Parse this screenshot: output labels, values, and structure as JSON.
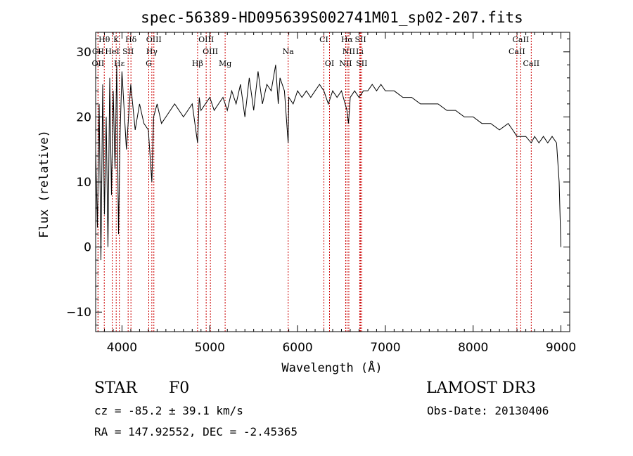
{
  "chart_data": {
    "type": "line",
    "title": "spec-56389-HD095639S002741M01_sp02-207.fits",
    "xlabel": "Wavelength (Å)",
    "ylabel": "Flux (relative)",
    "xlim": [
      3700,
      9100
    ],
    "ylim": [
      -13,
      33
    ],
    "xticks": [
      4000,
      5000,
      6000,
      7000,
      8000,
      9000
    ],
    "yticks": [
      -10,
      0,
      10,
      20,
      30
    ],
    "grid": false,
    "series": [
      {
        "name": "spectrum",
        "x": [
          3700,
          3720,
          3740,
          3760,
          3780,
          3800,
          3820,
          3840,
          3860,
          3880,
          3900,
          3920,
          3940,
          3960,
          3980,
          4000,
          4050,
          4100,
          4150,
          4200,
          4250,
          4300,
          4340,
          4360,
          4400,
          4450,
          4500,
          4550,
          4600,
          4650,
          4700,
          4750,
          4800,
          4861,
          4880,
          4900,
          4950,
          5000,
          5050,
          5100,
          5150,
          5200,
          5250,
          5300,
          5350,
          5400,
          5450,
          5500,
          5550,
          5600,
          5650,
          5700,
          5750,
          5780,
          5800,
          5850,
          5893,
          5900,
          5950,
          6000,
          6050,
          6100,
          6150,
          6200,
          6250,
          6300,
          6350,
          6400,
          6450,
          6500,
          6563,
          6580,
          6600,
          6650,
          6700,
          6750,
          6800,
          6850,
          6900,
          6950,
          7000,
          7100,
          7200,
          7300,
          7400,
          7500,
          7600,
          7700,
          7800,
          7900,
          8000,
          8100,
          8200,
          8300,
          8400,
          8450,
          8500,
          8542,
          8600,
          8662,
          8700,
          8750,
          8800,
          8850,
          8900,
          8950,
          8980,
          9000
        ],
        "values": [
          15,
          3,
          22,
          -2,
          25,
          5,
          20,
          0,
          26,
          8,
          24,
          12,
          28,
          2,
          18,
          27,
          15,
          25,
          18,
          22,
          19,
          18,
          10,
          20,
          22,
          19,
          20,
          21,
          22,
          21,
          20,
          21,
          22,
          16,
          23,
          21,
          22,
          23,
          21,
          22,
          23,
          21,
          24,
          22,
          25,
          20,
          26,
          21,
          27,
          22,
          25,
          24,
          28,
          22,
          26,
          24,
          16,
          23,
          22,
          24,
          23,
          24,
          23,
          24,
          25,
          24,
          22,
          24,
          23,
          24,
          21,
          19,
          23,
          24,
          23,
          24,
          24,
          25,
          24,
          25,
          24,
          24,
          23,
          23,
          22,
          22,
          22,
          21,
          21,
          20,
          20,
          19,
          19,
          18,
          19,
          18,
          17,
          17,
          17,
          16,
          17,
          16,
          17,
          16,
          17,
          16,
          10,
          0
        ]
      }
    ],
    "line_markers": [
      {
        "label": "Hθ",
        "x": 3798
      },
      {
        "label": "K",
        "x": 3934
      },
      {
        "label": "Hδ",
        "x": 4102
      },
      {
        "label": "OIII",
        "x": 4363
      },
      {
        "label": "OIII",
        "x": 4959
      },
      {
        "label": "CI",
        "x": 6300
      },
      {
        "label": "Hα",
        "x": 6563
      },
      {
        "label": "SII",
        "x": 6717
      },
      {
        "label": "CaII",
        "x": 8542
      },
      {
        "label": "CII",
        "x": 3727
      },
      {
        "label": "HeI",
        "x": 3889
      },
      {
        "label": "SII",
        "x": 4070
      },
      {
        "label": "Hγ",
        "x": 4340
      },
      {
        "label": "OIII",
        "x": 5007
      },
      {
        "label": "Na",
        "x": 5893
      },
      {
        "label": "NII",
        "x": 6584
      },
      {
        "label": "Li",
        "x": 6708
      },
      {
        "label": "CaII",
        "x": 8498
      },
      {
        "label": "OII",
        "x": 3727
      },
      {
        "label": "Hε",
        "x": 3970
      },
      {
        "label": "G",
        "x": 4305
      },
      {
        "label": "Hβ",
        "x": 4861
      },
      {
        "label": "Mg",
        "x": 5175
      },
      {
        "label": "OI",
        "x": 6364
      },
      {
        "label": "NII",
        "x": 6548
      },
      {
        "label": "SII",
        "x": 6731
      },
      {
        "label": "CaII",
        "x": 8662
      }
    ]
  },
  "info": {
    "object": "STAR",
    "subclass": "F0",
    "survey": "LAMOST DR3",
    "redshift": "cz = -85.2 ± 39.1 km/s",
    "obs_date": "Obs-Date: 20130406",
    "coords": "RA = 147.92552, DEC =  -2.45365"
  },
  "colors": {
    "line": "#000000",
    "marker": "#cc0000"
  }
}
